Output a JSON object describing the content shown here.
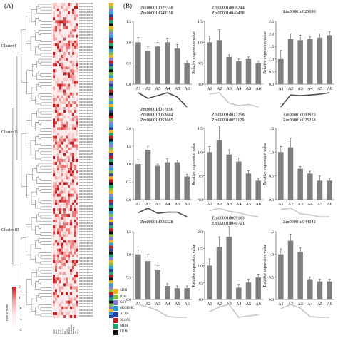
{
  "figure": {
    "label_a": "(A)",
    "label_b": "(B)",
    "clusters": [
      "Cluster I",
      "Cluster II",
      "Cluster III"
    ],
    "zscore_title": "Row Z-score",
    "zscore_ticks": [
      "2",
      "1",
      "0",
      "-1",
      "-2"
    ],
    "legend": [
      {
        "name": "SDH",
        "color": "#f2b11a"
      },
      {
        "name": "IDH",
        "color": "#7cc242"
      },
      {
        "name": "CSY",
        "color": "#8a7fd8"
      },
      {
        "name": "αKGDHC",
        "color": "#26a0df"
      },
      {
        "name": "ACO",
        "color": "#2e3f9e"
      },
      {
        "name": "SCoAL",
        "color": "#c11b1b"
      },
      {
        "name": "MDH",
        "color": "#17a66b"
      },
      {
        "name": "FUM",
        "color": "#111111"
      }
    ],
    "col_labels": [
      "Seed",
      "Root",
      "Stem",
      "Leaf",
      "Tassel",
      "Ear",
      "Ovule",
      "Pericarp",
      "Endosperm",
      "Seedling",
      "Silk",
      "Shoot"
    ],
    "heatmap_palette": [
      "#fdeaea",
      "#f9c9c9",
      "#f2a3a3",
      "#e97878",
      "#d94848",
      "#c21f24"
    ],
    "gene_ids": [
      "Zm00001d013039",
      "Zm00001d016424",
      "Zm00001d026153",
      "Zm00001d048358",
      "Zm00001d002315",
      "Zm00001d027558",
      "Zm00001d044042",
      "Zm00001d031902",
      "Zm00001d008244",
      "Zm00001d040438",
      "Zm00001d024578",
      "Zm00001d038772",
      "Zm00001d017258",
      "Zm00001d051129",
      "Zm00001d025690",
      "Zm00001d009163",
      "Zm00001d040721",
      "Zm00001d036328",
      "Zm00001d044281",
      "Zm00001d003923",
      "Zm00001d025258",
      "Zm00001d017856",
      "Zm00001d053684",
      "Zm00001d053685",
      "Zm00001d012276",
      "Zm00001d032450",
      "Zm00001d041106",
      "Zm00001d005218",
      "Zm00001d046390",
      "Zm00001d020114",
      "Zm00001d035672",
      "Zm00001d011928",
      "Zm00001d042508",
      "Zm00001d007643",
      "Zm00001d029381",
      "Zm00001d050266",
      "Zm00001d014807",
      "Zm00001d033195",
      "Zm00001d022679",
      "Zm00001d048852",
      "Zm00001d004413",
      "Zm00001d037226",
      "Zm00001d019560",
      "Zm00001d043911",
      "Zm00001d010574",
      "Zm00001d027043",
      "Zm00001d052318",
      "Zm00001d015986",
      "Zm00001d039870",
      "Zm00001d006231",
      "Zm00001d030147",
      "Zm00001d045719",
      "Zm00001d021483",
      "Zm00001d034992",
      "Zm00001d008911",
      "Zm00001d049035",
      "Zm00001d013757",
      "Zm00001d026614",
      "Zm00001d041823",
      "Zm00001d002796",
      "Zm00001d018322",
      "Zm00001d036004",
      "Zm00001d050817",
      "Zm00001d011366",
      "Zm00001d029758",
      "Zm00001d044587",
      "Zm00001d023105",
      "Zm00001d038290",
      "Zm00001d005971",
      "Zm00001d047164",
      "Zm00001d016053",
      "Zm00001d032829",
      "Zm00001d020846",
      "Zm00001d042395",
      "Zm00001d009512",
      "Zm00001d027786",
      "Zm00001d053021",
      "Zm00001d014340",
      "Zm00001d039118",
      "Zm00001d003657",
      "Zm00001d024019",
      "Zm00001d046873",
      "Zm00001d012688",
      "Zm00001d035240",
      "Zm00001d021957",
      "Zm00001d048016",
      "Zm00001d007305",
      "Zm00001d030492",
      "Zm00001d043368",
      "Zm00001d017719",
      "Zm00001d051604",
      "Zm00001d010183",
      "Zm00001d033847",
      "Zm00001d025521",
      "Zm00001d040969",
      "Zm00001d006658",
      "Zm00001d028214",
      "Zm00001d045133",
      "Zm00001d019027",
      "Zm00001d037781",
      "Zm00001d013452",
      "Zm00001d031366",
      "Zm00001d049590",
      "Zm00001d004038",
      "Zm00001d022270",
      "Zm00001d041531",
      "Zm00001d015409",
      "Zm00001d036917",
      "Zm00001d008076"
    ],
    "gene_families": [
      0,
      1,
      2,
      3,
      4,
      5,
      6,
      7,
      0,
      1,
      2,
      3,
      4,
      5,
      6,
      7,
      3,
      1,
      0,
      2,
      5,
      4,
      6,
      7,
      1,
      3,
      0,
      2,
      4,
      6,
      5,
      7,
      2,
      1,
      3,
      0,
      6,
      4,
      7,
      5,
      1,
      2,
      3,
      4,
      0,
      6,
      5,
      7,
      3,
      2,
      1,
      0,
      4,
      5,
      6,
      7,
      2,
      3,
      1,
      4,
      0,
      5,
      7,
      6,
      1,
      0,
      2,
      3,
      5,
      4,
      6,
      7,
      3,
      1,
      2,
      0,
      4,
      6,
      5,
      7,
      1,
      2,
      0,
      3,
      5,
      4,
      7,
      6,
      2,
      0,
      1,
      3,
      4,
      6,
      5,
      7,
      0,
      3,
      2,
      1,
      5,
      4,
      6,
      7,
      1,
      2,
      0,
      3,
      4
    ]
  },
  "bar_panels": [
    {
      "genes": [
        "Zm00001d027558",
        "Zm00001d048358"
      ],
      "ylabel": "Relative expression value",
      "yticks": [
        "1.5",
        "1.0",
        "0.5",
        "0.0"
      ],
      "ymax": 1.5,
      "values": [
        1.0,
        0.8,
        0.9,
        1.0,
        0.85,
        0.5
      ],
      "errors": [
        0.12,
        0.1,
        0.1,
        0.1,
        0.1,
        0.06
      ],
      "trend": "dark"
    },
    {
      "genes": [
        "Zm00001d008244",
        "Zm00001d040438"
      ],
      "ylabel": "Relative expression value",
      "yticks": [
        "1.5",
        "1.0",
        "0.5",
        "0.0"
      ],
      "ymax": 1.5,
      "values": [
        1.0,
        1.05,
        0.65,
        0.55,
        0.6,
        0.5
      ],
      "errors": [
        0.15,
        0.25,
        0.05,
        0.05,
        0.05,
        0.05
      ],
      "trend": "light"
    },
    {
      "genes": [
        "Zm00001d025690"
      ],
      "ylabel": "Relative expression value",
      "yticks": [
        "2.5",
        "2.0",
        "1.5",
        "1.0",
        "0.5",
        "0.0"
      ],
      "ymax": 2.5,
      "values": [
        1.0,
        1.8,
        1.75,
        1.8,
        1.85,
        1.95
      ],
      "errors": [
        0.35,
        0.2,
        0.2,
        0.1,
        0.15,
        0.15
      ],
      "trend": "dark"
    },
    {
      "genes": [
        "Zm00001d017856",
        "Zm00001d053684",
        "Zm00001d053685"
      ],
      "ylabel": "Relative expression value",
      "yticks": [
        "2.0",
        "1.5",
        "1.0",
        "0.5",
        "0.0"
      ],
      "ymax": 2.0,
      "values": [
        1.0,
        1.4,
        0.95,
        1.05,
        1.05,
        0.65
      ],
      "errors": [
        0.12,
        0.1,
        0.05,
        0.1,
        0.06,
        0.06
      ],
      "trend": "dark"
    },
    {
      "genes": [
        "Zm00001d017258",
        "Zm00001d051129"
      ],
      "ylabel": "Relative expression value",
      "yticks": [
        "1.5",
        "1.0",
        "0.5",
        "0.0"
      ],
      "ymax": 1.5,
      "values": [
        1.0,
        1.25,
        0.95,
        0.8,
        0.55,
        0.4
      ],
      "errors": [
        0.12,
        0.3,
        0.1,
        0.08,
        0.06,
        0.05
      ],
      "trend": "light"
    },
    {
      "genes": [
        "Zm00001d003923",
        "Zm00001d025258"
      ],
      "ylabel": "Relative expression value",
      "yticks": [
        "1.5",
        "1.0",
        "0.5",
        "0.0"
      ],
      "ymax": 1.5,
      "values": [
        1.0,
        1.1,
        0.65,
        0.55,
        0.4,
        0.4
      ],
      "errors": [
        0.12,
        0.2,
        0.05,
        0.05,
        0.1,
        0.05
      ],
      "trend": "light"
    },
    {
      "genes": [
        "Zm00001d036328"
      ],
      "ylabel": "Relative expression value",
      "yticks": [
        "1.5",
        "1.0",
        "0.5",
        "0.0"
      ],
      "ymax": 1.5,
      "values": [
        1.0,
        0.85,
        0.65,
        0.3,
        0.25,
        0.25
      ],
      "errors": [
        0.1,
        0.15,
        0.1,
        0.05,
        0.05,
        0.05
      ],
      "trend": "light"
    },
    {
      "genes": [
        "Zm00001d009163",
        "Zm00001d040721"
      ],
      "ylabel": "Relative expression value",
      "yticks": [
        "2.0",
        "1.5",
        "1.0",
        "0.5",
        "0.0"
      ],
      "ymax": 2.0,
      "values": [
        1.0,
        1.55,
        1.85,
        0.35,
        0.5,
        0.65
      ],
      "errors": [
        0.2,
        0.3,
        0.3,
        0.1,
        0.1,
        0.1
      ],
      "trend": "light"
    },
    {
      "genes": [
        "Zm00001d044042"
      ],
      "ylabel": "Relative expression value",
      "yticks": [
        "1.5",
        "1.0",
        "0.5",
        "0.0"
      ],
      "ymax": 1.5,
      "values": [
        1.0,
        1.3,
        1.05,
        0.45,
        0.4,
        0.4
      ],
      "errors": [
        0.12,
        0.15,
        0.1,
        0.05,
        0.05,
        0.05
      ],
      "trend": "light"
    }
  ],
  "x_categories": [
    "A1",
    "A2",
    "A3",
    "A4",
    "A5",
    "A6"
  ]
}
